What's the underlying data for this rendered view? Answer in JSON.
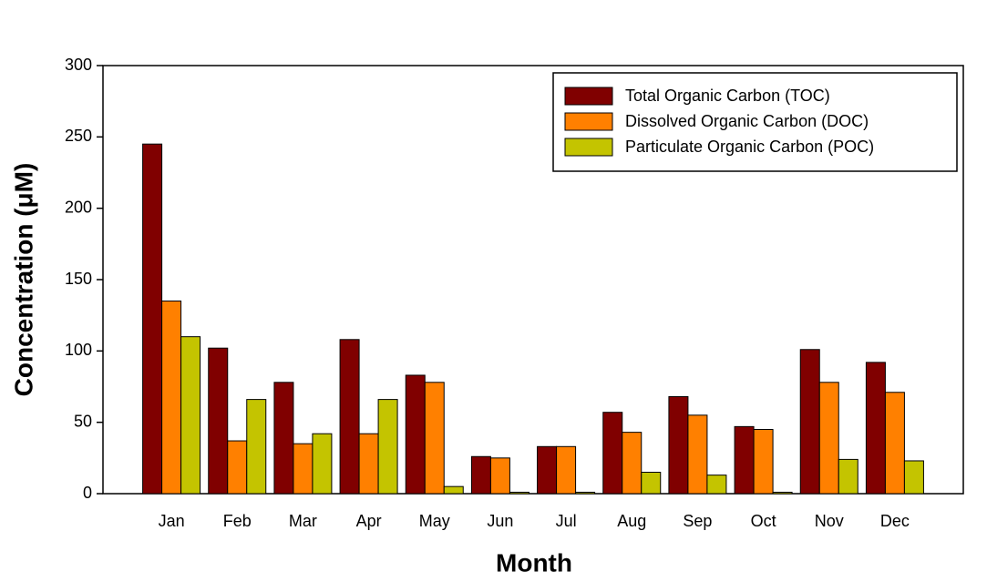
{
  "chart_data": {
    "type": "bar",
    "xlabel": "Month",
    "ylabel": "Concentration (μM)",
    "categories": [
      "Jan",
      "Feb",
      "Mar",
      "Apr",
      "May",
      "Jun",
      "Jul",
      "Aug",
      "Sep",
      "Oct",
      "Nov",
      "Dec"
    ],
    "series": [
      {
        "name": "Total Organic Carbon (TOC)",
        "color": "#800000",
        "values": [
          245,
          102,
          78,
          108,
          83,
          26,
          33,
          57,
          68,
          47,
          101,
          92
        ]
      },
      {
        "name": "Dissolved Organic Carbon (DOC)",
        "color": "#ff8000",
        "values": [
          135,
          37,
          35,
          42,
          78,
          25,
          33,
          43,
          55,
          45,
          78,
          71
        ]
      },
      {
        "name": "Particulate Organic Carbon (POC)",
        "color": "#c4c400",
        "values": [
          110,
          66,
          42,
          66,
          5,
          1,
          1,
          15,
          13,
          1,
          24,
          23
        ]
      }
    ],
    "ylim": [
      0,
      300
    ],
    "yticks": [
      0,
      50,
      100,
      150,
      200,
      250,
      300
    ],
    "legend": "upper right"
  }
}
